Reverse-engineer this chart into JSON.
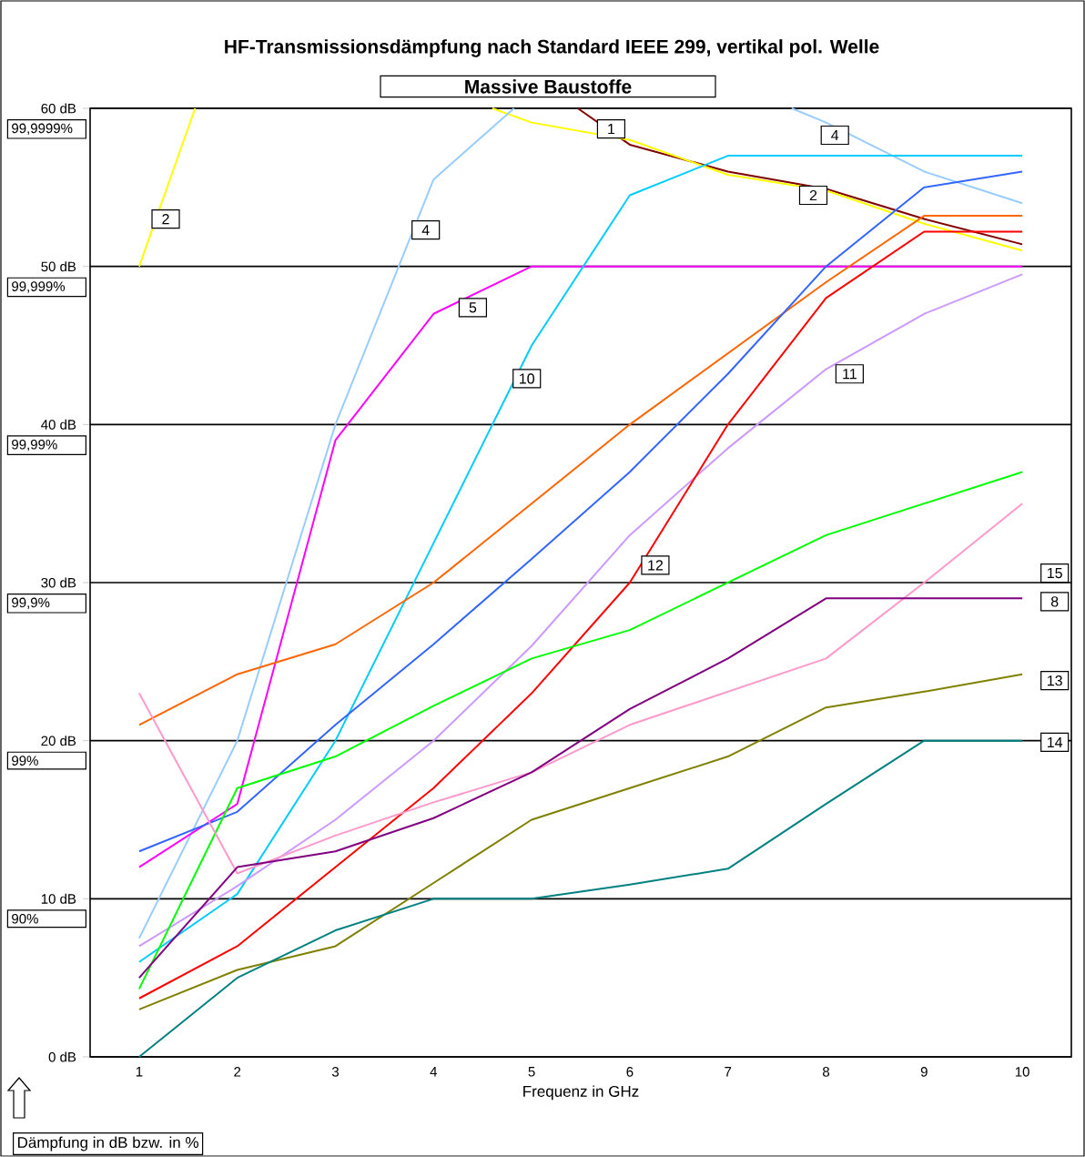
{
  "chart_data": {
    "type": "line",
    "title": "HF-Transmissionsdämpfung nach Standard IEEE 299, vertikal pol. Welle",
    "subtitle": "Massive Baustoffe",
    "xlabel": "Frequenz in GHz",
    "x": [
      1,
      2,
      3,
      4,
      5,
      6,
      7,
      8,
      9,
      10
    ],
    "xlim": [
      0.5,
      10.5
    ],
    "xticks": [
      1,
      2,
      3,
      4,
      5,
      6,
      7,
      8,
      9,
      10
    ],
    "ylim": [
      0,
      60
    ],
    "yticks": [
      {
        "value": 0,
        "label": "0 dB"
      },
      {
        "value": 10,
        "label": "10 dB"
      },
      {
        "value": 20,
        "label": "20 dB"
      },
      {
        "value": 30,
        "label": "30 dB"
      },
      {
        "value": 40,
        "label": "40 dB"
      },
      {
        "value": 50,
        "label": "50 dB"
      },
      {
        "value": 60,
        "label": "60 dB"
      }
    ],
    "series": [
      {
        "color": "#800000",
        "x": [
          5.47,
          6,
          7,
          8,
          9,
          10
        ],
        "values": [
          60,
          57.7,
          56.0,
          54.9,
          53.0,
          51.4
        ]
      },
      {
        "color": "#ffff00",
        "x": [
          1,
          1.57,
          3,
          4.6,
          5,
          6,
          7,
          8,
          9,
          10
        ],
        "values": [
          50,
          60,
          null,
          60,
          59.1,
          58.0,
          55.8,
          54.8,
          52.7,
          51.0
        ]
      },
      {
        "color": "#99ccff",
        "x": [
          1,
          2,
          3,
          4,
          4.82,
          6,
          7.65,
          8,
          9,
          10
        ],
        "values": [
          7.5,
          20,
          40,
          55.5,
          60,
          null,
          60,
          59.1,
          56.0,
          54.0
        ]
      },
      {
        "color": "#ff00ff",
        "values": [
          12,
          16,
          39,
          47,
          50,
          50,
          50,
          50,
          50,
          50
        ]
      },
      {
        "color": "#00ccff",
        "values": [
          6,
          10.3,
          20,
          32.5,
          45,
          54.5,
          57,
          57,
          57,
          57
        ]
      },
      {
        "color": "#cc99ff",
        "values": [
          7,
          10.8,
          15,
          20,
          26,
          33,
          38.5,
          43.5,
          47,
          49.5
        ]
      },
      {
        "color": "#ff0000",
        "values": [
          3.7,
          7,
          12,
          17,
          23,
          30,
          40,
          48,
          52.2,
          52.2
        ]
      },
      {
        "color": "#ff6600",
        "values": [
          21,
          24.2,
          26.1,
          30,
          35,
          40,
          44.5,
          49,
          53.2,
          53.2
        ]
      },
      {
        "color": "#3366ff",
        "values": [
          13,
          15.5,
          21,
          26.1,
          31.5,
          37,
          43.2,
          50,
          55,
          56
        ]
      },
      {
        "color": "#00ff00",
        "values": [
          4.3,
          17,
          19,
          22.2,
          25.2,
          27,
          30,
          33,
          35,
          37
        ]
      },
      {
        "color": "#ff99cc",
        "values": [
          23,
          11.6,
          14,
          16.1,
          18,
          21,
          23.1,
          25.2,
          30,
          35
        ]
      },
      {
        "color": "#800080",
        "values": [
          5,
          12,
          13,
          15.1,
          18,
          22,
          25.2,
          29,
          29,
          29
        ]
      },
      {
        "color": "#808000",
        "values": [
          3,
          5.5,
          7,
          11,
          15,
          17,
          19,
          22.1,
          23.1,
          24.2
        ]
      },
      {
        "color": "#008080",
        "values": [
          0,
          5,
          8,
          10,
          10,
          10.9,
          11.9,
          16,
          20,
          20
        ]
      }
    ],
    "grid": "y",
    "annotations": [
      "Dämpfung in dB bzw. in %",
      "99,9999%",
      "99,999%",
      "99,99%",
      "99,9%",
      "99%",
      "90%",
      {
        "text": "1",
        "x": 5.81,
        "y": 58.7
      },
      {
        "text": "4",
        "x": 8.09,
        "y": 58.3
      },
      {
        "text": "2",
        "x": 7.87,
        "y": 54.5
      },
      {
        "text": "2",
        "x": 1.27,
        "y": 53.0
      },
      {
        "text": "4",
        "x": 3.92,
        "y": 52.3
      },
      {
        "text": "5",
        "x": 4.4,
        "y": 47.4
      },
      {
        "text": "10",
        "x": 4.95,
        "y": 42.9
      },
      {
        "text": "11",
        "x": 8.24,
        "y": 43.2
      },
      {
        "text": "12",
        "x": 6.26,
        "y": 31.1
      },
      {
        "text": "15",
        "x": 10.33,
        "y": 30.6
      },
      {
        "text": "8",
        "x": 10.33,
        "y": 28.8
      },
      {
        "text": "13",
        "x": 10.33,
        "y": 23.8
      },
      {
        "text": "14",
        "x": 10.33,
        "y": 19.9
      }
    ]
  }
}
